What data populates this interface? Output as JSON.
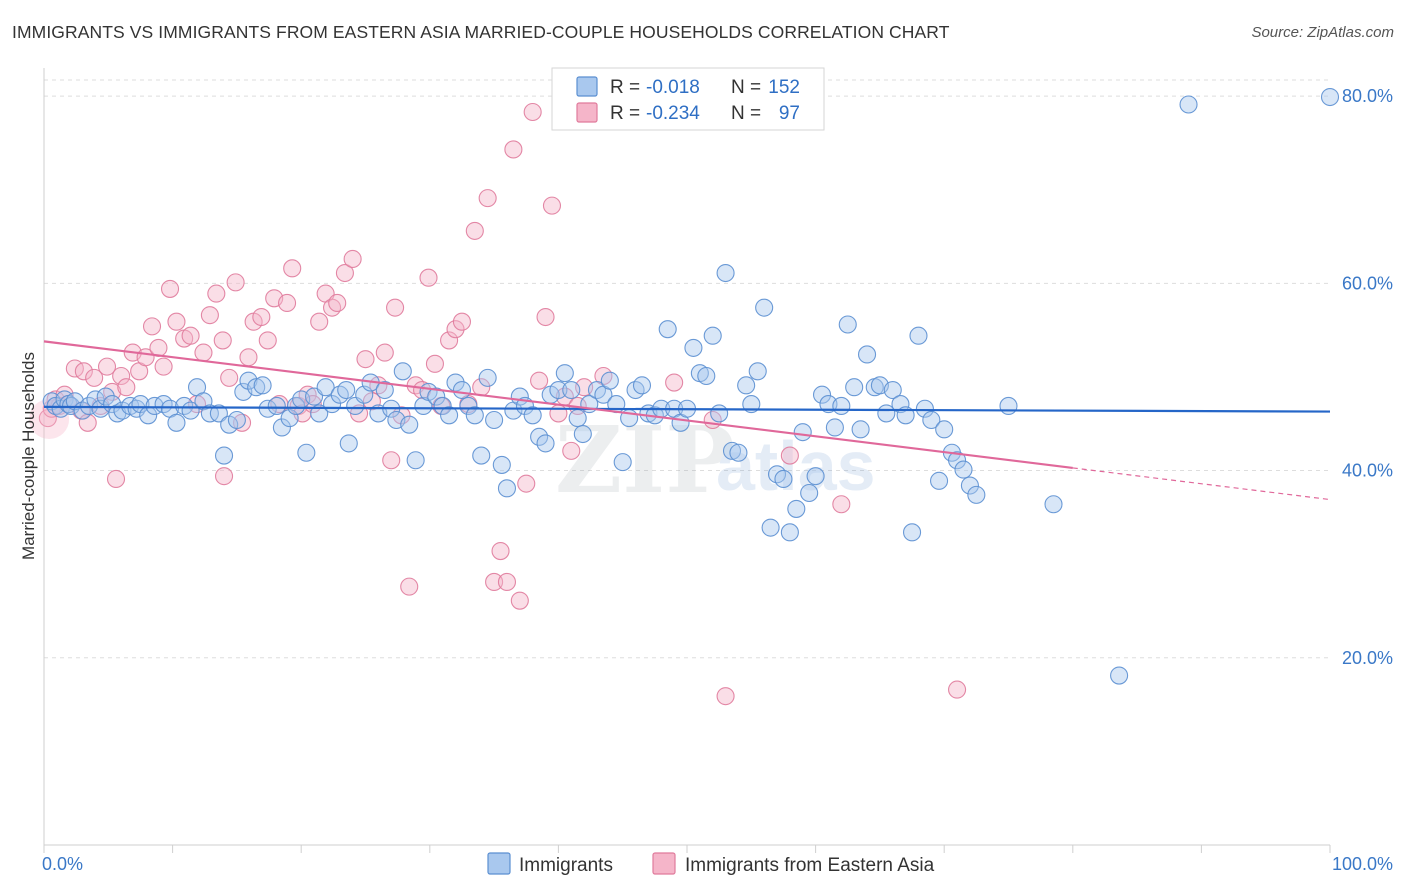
{
  "header": {
    "title": "IMMIGRANTS VS IMMIGRANTS FROM EASTERN ASIA MARRIED-COUPLE HOUSEHOLDS CORRELATION CHART",
    "source": "Source: ZipAtlas.com"
  },
  "watermark": {
    "part1": "ZIP",
    "part2": "atlas"
  },
  "colors": {
    "immigrants_fill": "#a9c8ee",
    "immigrants_stroke": "#5b8fd1",
    "immigrants_line": "#2566c8",
    "eastern_asia_fill": "#f5b5c9",
    "eastern_asia_stroke": "#e07b9c",
    "eastern_asia_line": "#e0689a",
    "tick_label": "#3a78c7",
    "grid": "#dddddd"
  },
  "legend": {
    "rows": [
      {
        "r_label": "R =",
        "r_value": "-0.018",
        "n_label": "N =",
        "n_value": "152"
      },
      {
        "r_label": "R =",
        "r_value": "-0.234",
        "n_label": "N =",
        "n_value": "97"
      }
    ],
    "bottom": [
      "Immigrants",
      "Immigrants from Eastern Asia"
    ]
  },
  "chart_data": {
    "type": "scatter",
    "title": "IMMIGRANTS VS IMMIGRANTS FROM EASTERN ASIA MARRIED-COUPLE HOUSEHOLDS CORRELATION CHART",
    "ylabel": "Married-couple Households",
    "xlabel": "",
    "xlim": [
      0,
      100
    ],
    "ylim": [
      0,
      83
    ],
    "x_tick_labels": [
      "0.0%",
      "100.0%"
    ],
    "y_ticks": [
      20,
      40,
      60,
      80
    ],
    "y_tick_labels": [
      "20.0%",
      "40.0%",
      "60.0%",
      "80.0%"
    ],
    "grid": true,
    "series": [
      {
        "name": "Immigrants",
        "R": -0.018,
        "N": 152,
        "trend": {
          "x": [
            0,
            100
          ],
          "y": [
            46.8,
            46.3
          ]
        },
        "points": [
          [
            0.6,
            47.4
          ],
          [
            0.9,
            46.9
          ],
          [
            1.3,
            46.6
          ],
          [
            1.6,
            47.6
          ],
          [
            1.9,
            47.1
          ],
          [
            2.1,
            46.9
          ],
          [
            2.4,
            47.4
          ],
          [
            3.0,
            46.4
          ],
          [
            3.5,
            46.9
          ],
          [
            4.0,
            47.6
          ],
          [
            4.4,
            46.6
          ],
          [
            4.8,
            47.9
          ],
          [
            5.3,
            47.1
          ],
          [
            5.7,
            46.1
          ],
          [
            6.1,
            46.4
          ],
          [
            6.7,
            46.9
          ],
          [
            7.2,
            46.6
          ],
          [
            7.5,
            47.1
          ],
          [
            8.1,
            45.9
          ],
          [
            8.6,
            46.9
          ],
          [
            9.3,
            47.1
          ],
          [
            9.8,
            46.6
          ],
          [
            10.3,
            45.1
          ],
          [
            10.9,
            46.9
          ],
          [
            11.4,
            46.4
          ],
          [
            11.9,
            48.9
          ],
          [
            12.4,
            47.4
          ],
          [
            12.9,
            46.1
          ],
          [
            13.6,
            46.1
          ],
          [
            14.0,
            41.6
          ],
          [
            14.4,
            44.9
          ],
          [
            15.0,
            45.4
          ],
          [
            15.5,
            48.4
          ],
          [
            15.9,
            49.6
          ],
          [
            16.5,
            48.9
          ],
          [
            17.0,
            49.1
          ],
          [
            17.4,
            46.6
          ],
          [
            18.1,
            46.9
          ],
          [
            18.5,
            44.6
          ],
          [
            19.1,
            45.6
          ],
          [
            19.6,
            46.9
          ],
          [
            20.0,
            47.6
          ],
          [
            20.4,
            41.9
          ],
          [
            21.0,
            47.9
          ],
          [
            21.4,
            46.1
          ],
          [
            21.9,
            48.9
          ],
          [
            22.4,
            47.1
          ],
          [
            23.0,
            48.1
          ],
          [
            23.5,
            48.6
          ],
          [
            23.7,
            42.9
          ],
          [
            24.2,
            46.9
          ],
          [
            24.9,
            48.1
          ],
          [
            25.4,
            49.4
          ],
          [
            26.0,
            46.1
          ],
          [
            26.5,
            48.6
          ],
          [
            27.0,
            46.6
          ],
          [
            27.4,
            45.4
          ],
          [
            27.9,
            50.6
          ],
          [
            28.4,
            44.9
          ],
          [
            28.9,
            41.1
          ],
          [
            29.5,
            46.9
          ],
          [
            29.9,
            48.4
          ],
          [
            30.5,
            47.9
          ],
          [
            31.0,
            46.9
          ],
          [
            31.5,
            45.9
          ],
          [
            32.0,
            49.4
          ],
          [
            32.5,
            48.6
          ],
          [
            33.0,
            46.9
          ],
          [
            33.5,
            45.9
          ],
          [
            34.0,
            41.6
          ],
          [
            34.5,
            49.9
          ],
          [
            35.0,
            45.4
          ],
          [
            35.6,
            40.6
          ],
          [
            36.0,
            38.1
          ],
          [
            36.5,
            46.4
          ],
          [
            37.0,
            47.9
          ],
          [
            37.4,
            46.9
          ],
          [
            38.0,
            45.9
          ],
          [
            38.5,
            43.6
          ],
          [
            39.0,
            42.9
          ],
          [
            39.4,
            48.1
          ],
          [
            40.0,
            48.6
          ],
          [
            40.5,
            50.4
          ],
          [
            41.0,
            48.6
          ],
          [
            41.5,
            45.6
          ],
          [
            41.9,
            43.9
          ],
          [
            42.4,
            47.1
          ],
          [
            43.0,
            48.6
          ],
          [
            43.5,
            48.1
          ],
          [
            44.0,
            49.6
          ],
          [
            44.5,
            47.1
          ],
          [
            45.0,
            40.9
          ],
          [
            45.5,
            45.6
          ],
          [
            46.0,
            48.6
          ],
          [
            46.5,
            49.1
          ],
          [
            47.0,
            46.1
          ],
          [
            47.5,
            45.9
          ],
          [
            48.0,
            46.6
          ],
          [
            48.5,
            55.1
          ],
          [
            49.0,
            46.6
          ],
          [
            49.5,
            45.1
          ],
          [
            50.0,
            46.6
          ],
          [
            50.5,
            53.1
          ],
          [
            51.0,
            50.4
          ],
          [
            51.5,
            50.1
          ],
          [
            52.0,
            54.4
          ],
          [
            52.5,
            46.1
          ],
          [
            53.0,
            61.1
          ],
          [
            53.5,
            42.1
          ],
          [
            54.0,
            41.9
          ],
          [
            54.6,
            49.1
          ],
          [
            55.0,
            47.1
          ],
          [
            55.5,
            50.6
          ],
          [
            56.0,
            57.4
          ],
          [
            56.5,
            33.9
          ],
          [
            57.0,
            39.6
          ],
          [
            57.5,
            39.1
          ],
          [
            58.0,
            33.4
          ],
          [
            58.5,
            35.9
          ],
          [
            59.0,
            44.1
          ],
          [
            59.5,
            37.6
          ],
          [
            60.0,
            39.4
          ],
          [
            60.5,
            48.1
          ],
          [
            61.0,
            47.1
          ],
          [
            61.5,
            44.6
          ],
          [
            62.0,
            46.9
          ],
          [
            62.5,
            55.6
          ],
          [
            63.0,
            48.9
          ],
          [
            63.5,
            44.4
          ],
          [
            64.0,
            52.4
          ],
          [
            64.6,
            48.9
          ],
          [
            65.0,
            49.1
          ],
          [
            65.5,
            46.1
          ],
          [
            66.0,
            48.6
          ],
          [
            66.6,
            47.1
          ],
          [
            67.0,
            45.9
          ],
          [
            67.5,
            33.4
          ],
          [
            68.0,
            54.4
          ],
          [
            68.5,
            46.6
          ],
          [
            69.0,
            45.4
          ],
          [
            69.6,
            38.9
          ],
          [
            70.0,
            44.4
          ],
          [
            70.6,
            41.9
          ],
          [
            71.0,
            41.1
          ],
          [
            71.5,
            40.1
          ],
          [
            72.0,
            38.4
          ],
          [
            72.5,
            37.4
          ],
          [
            75.0,
            46.9
          ],
          [
            78.5,
            36.4
          ],
          [
            83.6,
            18.1
          ],
          [
            89.0,
            79.1
          ],
          [
            100.0,
            79.9
          ]
        ]
      },
      {
        "name": "Immigrants from Eastern Asia",
        "R": -0.234,
        "N": 97,
        "trend": {
          "x": [
            0,
            100
          ],
          "y": [
            53.8,
            36.9
          ],
          "solid_until_x": 80
        },
        "points": [
          [
            0.3,
            45.6
          ],
          [
            0.6,
            46.6
          ],
          [
            0.9,
            47.6
          ],
          [
            1.2,
            46.9
          ],
          [
            1.6,
            48.1
          ],
          [
            1.9,
            47.1
          ],
          [
            2.4,
            50.9
          ],
          [
            2.9,
            46.4
          ],
          [
            3.1,
            50.6
          ],
          [
            3.4,
            45.1
          ],
          [
            3.9,
            49.9
          ],
          [
            4.4,
            46.9
          ],
          [
            4.9,
            51.1
          ],
          [
            5.3,
            48.4
          ],
          [
            5.6,
            39.1
          ],
          [
            6.0,
            50.1
          ],
          [
            6.4,
            48.9
          ],
          [
            6.9,
            52.6
          ],
          [
            7.4,
            50.6
          ],
          [
            7.9,
            52.1
          ],
          [
            8.4,
            55.4
          ],
          [
            8.9,
            53.1
          ],
          [
            9.3,
            51.1
          ],
          [
            9.8,
            59.4
          ],
          [
            10.3,
            55.9
          ],
          [
            10.9,
            54.1
          ],
          [
            11.4,
            54.4
          ],
          [
            11.9,
            47.1
          ],
          [
            12.4,
            52.6
          ],
          [
            12.9,
            56.6
          ],
          [
            13.4,
            58.9
          ],
          [
            13.9,
            53.9
          ],
          [
            14.0,
            39.4
          ],
          [
            14.4,
            49.9
          ],
          [
            14.9,
            60.1
          ],
          [
            15.4,
            45.1
          ],
          [
            15.9,
            52.1
          ],
          [
            16.3,
            55.9
          ],
          [
            16.9,
            56.4
          ],
          [
            17.4,
            53.9
          ],
          [
            17.9,
            58.4
          ],
          [
            18.3,
            47.1
          ],
          [
            18.9,
            57.9
          ],
          [
            19.3,
            61.6
          ],
          [
            19.8,
            46.9
          ],
          [
            20.1,
            46.1
          ],
          [
            20.5,
            48.1
          ],
          [
            20.9,
            47.1
          ],
          [
            21.4,
            55.9
          ],
          [
            21.9,
            58.9
          ],
          [
            22.4,
            57.4
          ],
          [
            22.8,
            57.9
          ],
          [
            23.4,
            61.1
          ],
          [
            24.0,
            62.6
          ],
          [
            24.5,
            46.1
          ],
          [
            25.0,
            51.9
          ],
          [
            25.5,
            47.4
          ],
          [
            26.0,
            49.1
          ],
          [
            26.5,
            52.6
          ],
          [
            27.0,
            41.1
          ],
          [
            27.3,
            57.4
          ],
          [
            27.8,
            45.9
          ],
          [
            28.4,
            27.6
          ],
          [
            28.9,
            49.1
          ],
          [
            29.4,
            48.6
          ],
          [
            29.9,
            60.6
          ],
          [
            30.4,
            51.4
          ],
          [
            30.9,
            46.9
          ],
          [
            31.5,
            53.9
          ],
          [
            32.0,
            55.1
          ],
          [
            32.5,
            55.9
          ],
          [
            33.0,
            47.1
          ],
          [
            33.5,
            65.6
          ],
          [
            34.0,
            48.9
          ],
          [
            34.5,
            69.1
          ],
          [
            35.0,
            28.1
          ],
          [
            35.5,
            31.4
          ],
          [
            36.0,
            28.1
          ],
          [
            36.5,
            74.3
          ],
          [
            37.0,
            26.1
          ],
          [
            37.5,
            38.6
          ],
          [
            38.0,
            78.3
          ],
          [
            38.5,
            49.6
          ],
          [
            39.0,
            56.4
          ],
          [
            39.5,
            68.3
          ],
          [
            40.0,
            46.1
          ],
          [
            40.5,
            47.9
          ],
          [
            41.0,
            42.1
          ],
          [
            41.5,
            46.9
          ],
          [
            42.0,
            48.9
          ],
          [
            43.5,
            50.1
          ],
          [
            49.0,
            49.4
          ],
          [
            52.0,
            45.4
          ],
          [
            53.0,
            15.9
          ],
          [
            58.0,
            41.6
          ],
          [
            62.0,
            36.4
          ],
          [
            71.0,
            16.6
          ]
        ]
      }
    ]
  }
}
